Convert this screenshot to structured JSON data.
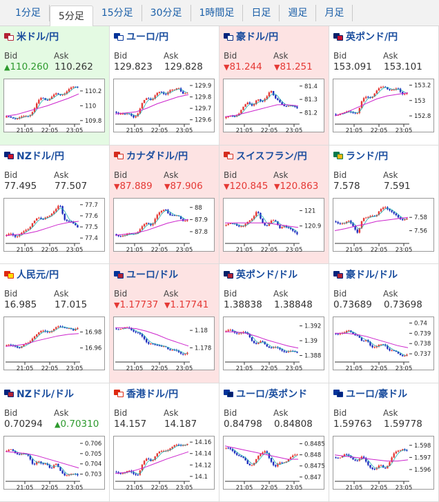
{
  "tabs": [
    "1分足",
    "5分足",
    "15分足",
    "30分足",
    "1時間足",
    "日足",
    "週足",
    "月足"
  ],
  "active_tab": 1,
  "labels": {
    "bid": "Bid",
    "ask": "Ask"
  },
  "x_ticks": [
    "21:05",
    "22:05",
    "23:05"
  ],
  "colors": {
    "up_bg": "#e4fae3",
    "down_bg": "#fde3e3",
    "title": "#1a4d9e",
    "candle_up": "#e53935",
    "candle_down": "#1f2fbf",
    "ma_short": "#20b0b0",
    "ma_long": "#cc22cc"
  },
  "pairs": [
    {
      "name": "米ドル/円",
      "flag": [
        "#b22234",
        "#ffffff"
      ],
      "state": "up",
      "bid": "110.260",
      "ask": "110.262",
      "bid_arrow": "▲",
      "ask_arrow": "",
      "bid_color": "green",
      "ask_color": "",
      "y_ticks": [
        "110.2",
        "110",
        "109.8"
      ],
      "ylim": [
        109.78,
        110.32
      ],
      "trend": [
        109.84,
        109.83,
        109.84,
        109.85,
        109.84,
        109.86,
        109.95,
        110.05,
        110.1,
        110.08,
        110.12,
        110.15,
        110.14,
        110.18,
        110.22,
        110.24,
        110.26
      ],
      "ma_long": [
        109.86,
        109.88,
        109.92,
        109.96,
        110.0,
        110.05,
        110.1,
        110.16
      ]
    },
    {
      "name": "ユーロ/円",
      "flag": [
        "#003399",
        "#ffffff"
      ],
      "state": "",
      "bid": "129.823",
      "ask": "129.828",
      "bid_arrow": "",
      "ask_arrow": "",
      "bid_color": "",
      "ask_color": "",
      "y_ticks": [
        "129.9",
        "129.8",
        "129.7",
        "129.6"
      ],
      "ylim": [
        129.58,
        129.93
      ],
      "trend": [
        129.67,
        129.66,
        129.64,
        129.65,
        129.63,
        129.66,
        129.75,
        129.8,
        129.78,
        129.82,
        129.84,
        129.83,
        129.86,
        129.85,
        129.88,
        129.84,
        129.83
      ],
      "ma_long": [
        129.65,
        129.66,
        129.67,
        129.7,
        129.74,
        129.77,
        129.8,
        129.82
      ]
    },
    {
      "name": "豪ドル/円",
      "flag": [
        "#00247d",
        "#ffffff"
      ],
      "state": "down",
      "bid": "81.244",
      "ask": "81.251",
      "bid_arrow": "▼",
      "ask_arrow": "▼",
      "bid_color": "red",
      "ask_color": "red",
      "y_ticks": [
        "81.4",
        "81.3",
        "81.2"
      ],
      "ylim": [
        81.13,
        81.43
      ],
      "trend": [
        81.16,
        81.17,
        81.18,
        81.2,
        81.24,
        81.28,
        81.26,
        81.3,
        81.27,
        81.32,
        81.38,
        81.3,
        81.28,
        81.26,
        81.25,
        81.24,
        81.24
      ],
      "ma_long": [
        81.17,
        81.18,
        81.2,
        81.22,
        81.24,
        81.26,
        81.26,
        81.25
      ]
    },
    {
      "name": "英ポンド/円",
      "flag": [
        "#012169",
        "#c8102e"
      ],
      "state": "",
      "bid": "153.091",
      "ask": "153.101",
      "bid_arrow": "",
      "ask_arrow": "",
      "bid_color": "",
      "ask_color": "",
      "y_ticks": [
        "153.2",
        "153",
        "152.8"
      ],
      "ylim": [
        152.72,
        153.24
      ],
      "trend": [
        152.82,
        152.84,
        152.83,
        152.85,
        152.86,
        152.84,
        153.0,
        153.06,
        153.05,
        153.1,
        153.16,
        153.2,
        153.14,
        153.12,
        153.16,
        153.1,
        153.09
      ],
      "ma_long": [
        152.8,
        152.84,
        152.9,
        152.96,
        153.02,
        153.06,
        153.08,
        153.1
      ]
    },
    {
      "name": "NZドル/円",
      "flag": [
        "#00247d",
        "#cc142b"
      ],
      "state": "",
      "bid": "77.495",
      "ask": "77.507",
      "bid_arrow": "",
      "ask_arrow": "",
      "bid_color": "",
      "ask_color": "",
      "y_ticks": [
        "77.7",
        "77.6",
        "77.5",
        "77.4"
      ],
      "ylim": [
        77.37,
        77.73
      ],
      "trend": [
        77.42,
        77.43,
        77.42,
        77.44,
        77.45,
        77.48,
        77.56,
        77.58,
        77.55,
        77.6,
        77.62,
        77.64,
        77.7,
        77.58,
        77.55,
        77.52,
        77.5
      ],
      "ma_long": [
        77.42,
        77.43,
        77.44,
        77.46,
        77.49,
        77.52,
        77.54,
        77.55
      ]
    },
    {
      "name": "カナダドル/円",
      "flag": [
        "#d52b1e",
        "#ffffff"
      ],
      "state": "down",
      "bid": "87.889",
      "ask": "87.906",
      "bid_arrow": "▼",
      "ask_arrow": "▼",
      "bid_color": "red",
      "ask_color": "red",
      "y_ticks": [
        "88",
        "87.9",
        "87.8"
      ],
      "ylim": [
        87.72,
        88.05
      ],
      "trend": [
        87.78,
        87.77,
        87.76,
        87.78,
        87.79,
        87.8,
        87.84,
        87.88,
        87.86,
        87.92,
        87.96,
        88.0,
        87.94,
        87.92,
        87.93,
        87.9,
        87.89
      ],
      "ma_long": [
        87.77,
        87.78,
        87.79,
        87.81,
        87.84,
        87.87,
        87.89,
        87.9
      ]
    },
    {
      "name": "スイスフラン/円",
      "flag": [
        "#d52b1e",
        "#ffffff"
      ],
      "state": "down",
      "bid": "120.845",
      "ask": "120.863",
      "bid_arrow": "▼",
      "ask_arrow": "▼",
      "bid_color": "red",
      "ask_color": "red",
      "y_ticks": [
        "121",
        "120.9"
      ],
      "ylim": [
        120.8,
        121.06
      ],
      "trend": [
        120.9,
        120.91,
        120.92,
        120.9,
        120.89,
        120.93,
        120.96,
        121.0,
        120.92,
        120.9,
        120.94,
        120.93,
        120.88,
        120.91,
        120.89,
        120.86,
        120.85
      ],
      "ma_long": [
        120.92,
        120.92,
        120.92,
        120.92,
        120.92,
        120.91,
        120.9,
        120.89
      ]
    },
    {
      "name": "ランド/円",
      "flag": [
        "#007a4d",
        "#ffb612"
      ],
      "state": "",
      "bid": "7.578",
      "ask": "7.591",
      "bid_arrow": "",
      "ask_arrow": "",
      "bid_color": "",
      "ask_color": "",
      "y_ticks": [
        "7.58",
        "7.56"
      ],
      "ylim": [
        7.544,
        7.604
      ],
      "trend": [
        7.574,
        7.572,
        7.57,
        7.574,
        7.568,
        7.556,
        7.576,
        7.58,
        7.585,
        7.58,
        7.59,
        7.598,
        7.592,
        7.584,
        7.58,
        7.578,
        7.578
      ],
      "ma_long": [
        7.56,
        7.563,
        7.567,
        7.57,
        7.574,
        7.576,
        7.578,
        7.58
      ]
    },
    {
      "name": "人民元/円",
      "flag": [
        "#de2910",
        "#ffde00"
      ],
      "state": "",
      "bid": "16.985",
      "ask": "17.015",
      "bid_arrow": "",
      "ask_arrow": "",
      "bid_color": "",
      "ask_color": "",
      "y_ticks": [
        "16.98",
        "16.96"
      ],
      "ylim": [
        16.945,
        16.995
      ],
      "trend": [
        16.963,
        16.962,
        16.963,
        16.961,
        16.963,
        16.966,
        16.975,
        16.978,
        16.98,
        16.981,
        16.982,
        16.984,
        16.986,
        16.987,
        16.985,
        16.98,
        16.985
      ],
      "ma_long": [
        16.962,
        16.963,
        16.965,
        16.969,
        16.972,
        16.975,
        16.977,
        16.978
      ]
    },
    {
      "name": "ユーロ/ドル",
      "flag": [
        "#003399",
        "#b22234"
      ],
      "state": "down",
      "bid": "1.17737",
      "ask": "1.17741",
      "bid_arrow": "▼",
      "ask_arrow": "▼",
      "bid_color": "red",
      "ask_color": "red",
      "y_ticks": [
        "1.18",
        "1.178"
      ],
      "ylim": [
        1.1766,
        1.1812
      ],
      "trend": [
        1.1802,
        1.1803,
        1.1802,
        1.1801,
        1.18,
        1.1798,
        1.179,
        1.1785,
        1.1787,
        1.1782,
        1.178,
        1.1783,
        1.1778,
        1.1776,
        1.1775,
        1.1774,
        1.1774
      ],
      "ma_long": [
        1.1803,
        1.1803,
        1.1802,
        1.1799,
        1.1795,
        1.179,
        1.1786,
        1.1782
      ]
    },
    {
      "name": "英ポンド/ドル",
      "flag": [
        "#012169",
        "#b22234"
      ],
      "state": "",
      "bid": "1.38838",
      "ask": "1.38848",
      "bid_arrow": "",
      "ask_arrow": "",
      "bid_color": "",
      "ask_color": "",
      "y_ticks": [
        "1.392",
        "1.39",
        "1.388"
      ],
      "ylim": [
        1.3874,
        1.3928
      ],
      "trend": [
        1.3912,
        1.3913,
        1.3912,
        1.3911,
        1.391,
        1.3908,
        1.39,
        1.3895,
        1.3898,
        1.3894,
        1.3892,
        1.389,
        1.3888,
        1.3887,
        1.3886,
        1.3884,
        1.3884
      ],
      "ma_long": [
        1.3912,
        1.3912,
        1.391,
        1.3906,
        1.3901,
        1.3897,
        1.3893,
        1.389
      ]
    },
    {
      "name": "豪ドル/ドル",
      "flag": [
        "#00247d",
        "#b22234"
      ],
      "state": "",
      "bid": "0.73689",
      "ask": "0.73698",
      "bid_arrow": "",
      "ask_arrow": "",
      "bid_color": "",
      "ask_color": "",
      "y_ticks": [
        "0.74",
        "0.739",
        "0.738",
        "0.737"
      ],
      "ylim": [
        0.7364,
        0.7403
      ],
      "trend": [
        0.739,
        0.7391,
        0.739,
        0.7392,
        0.739,
        0.7388,
        0.738,
        0.7384,
        0.7378,
        0.7376,
        0.7378,
        0.738,
        0.7374,
        0.7372,
        0.737,
        0.7369,
        0.7369
      ],
      "ma_long": [
        0.739,
        0.739,
        0.7389,
        0.7387,
        0.7384,
        0.7381,
        0.7378,
        0.7376
      ]
    },
    {
      "name": "NZドル/ドル",
      "flag": [
        "#00247d",
        "#b22234"
      ],
      "state": "",
      "bid": "0.70294",
      "ask": "0.70310",
      "bid_arrow": "",
      "ask_arrow": "▲",
      "bid_color": "",
      "ask_color": "green",
      "y_ticks": [
        "0.706",
        "0.705",
        "0.704",
        "0.703"
      ],
      "ylim": [
        0.7025,
        0.7064
      ],
      "trend": [
        0.7052,
        0.7053,
        0.7051,
        0.705,
        0.7049,
        0.7047,
        0.704,
        0.7043,
        0.7038,
        0.7041,
        0.7036,
        0.704,
        0.7033,
        0.703,
        0.703,
        0.7029,
        0.7029
      ],
      "ma_long": [
        0.7052,
        0.7051,
        0.705,
        0.7048,
        0.7045,
        0.7042,
        0.7039,
        0.7036
      ]
    },
    {
      "name": "香港ドル/円",
      "flag": [
        "#de2910",
        "#ffffff"
      ],
      "state": "",
      "bid": "14.157",
      "ask": "14.187",
      "bid_arrow": "",
      "ask_arrow": "",
      "bid_color": "",
      "ask_color": "",
      "y_ticks": [
        "14.16",
        "14.14",
        "14.12",
        "14.1"
      ],
      "ylim": [
        14.095,
        14.165
      ],
      "trend": [
        14.108,
        14.107,
        14.106,
        14.108,
        14.106,
        14.104,
        14.122,
        14.132,
        14.128,
        14.138,
        14.142,
        14.146,
        14.15,
        14.152,
        14.154,
        14.157,
        14.157
      ],
      "ma_long": [
        14.105,
        14.107,
        14.111,
        14.117,
        14.124,
        14.131,
        14.137,
        14.143
      ]
    },
    {
      "name": "ユーロ/英ポンド",
      "flag": [
        "#003399",
        "#012169"
      ],
      "state": "",
      "bid": "0.84798",
      "ask": "0.84808",
      "bid_arrow": "",
      "ask_arrow": "",
      "bid_color": "",
      "ask_color": "",
      "y_ticks": [
        "0.8485",
        "0.848",
        "0.8475",
        "0.847"
      ],
      "ylim": [
        0.8469,
        0.8487
      ],
      "trend": [
        0.8483,
        0.8482,
        0.8481,
        0.848,
        0.8478,
        0.8475,
        0.8476,
        0.8479,
        0.848,
        0.8482,
        0.8478,
        0.8474,
        0.8476,
        0.8477,
        0.8478,
        0.8479,
        0.848
      ],
      "ma_long": [
        0.8484,
        0.8483,
        0.8482,
        0.8481,
        0.848,
        0.8479,
        0.8478,
        0.8478
      ]
    },
    {
      "name": "ユーロ/豪ドル",
      "flag": [
        "#003399",
        "#00247d"
      ],
      "state": "",
      "bid": "1.59763",
      "ask": "1.59778",
      "bid_arrow": "",
      "ask_arrow": "",
      "bid_color": "",
      "ask_color": "",
      "y_ticks": [
        "1.598",
        "1.597",
        "1.596"
      ],
      "ylim": [
        1.5952,
        1.5985
      ],
      "trend": [
        1.597,
        1.5971,
        1.5972,
        1.597,
        1.5969,
        1.5968,
        1.597,
        1.5965,
        1.5962,
        1.596,
        1.5963,
        1.5961,
        1.5966,
        1.5972,
        1.5975,
        1.5978,
        1.5976
      ],
      "ma_long": [
        1.5972,
        1.5971,
        1.597,
        1.5969,
        1.5968,
        1.5967,
        1.5967,
        1.5968
      ]
    }
  ]
}
